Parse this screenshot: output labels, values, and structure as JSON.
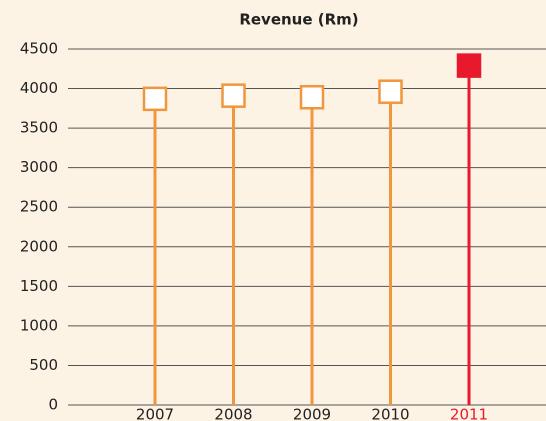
{
  "chart_data": {
    "type": "lollipop",
    "title": "Revenue (Rm)",
    "categories": [
      "2007",
      "2008",
      "2009",
      "2010",
      "2011"
    ],
    "values": [
      3870,
      3910,
      3890,
      3960,
      4290
    ],
    "colors": [
      "#f0963c",
      "#f0963c",
      "#f0963c",
      "#f0963c",
      "#e8192c"
    ],
    "filled": [
      false,
      false,
      false,
      false,
      true
    ],
    "ylim": [
      0,
      4500
    ],
    "yticks": [
      0,
      500,
      1000,
      1500,
      2000,
      2500,
      3000,
      3500,
      4000,
      4500
    ],
    "grid": true
  }
}
